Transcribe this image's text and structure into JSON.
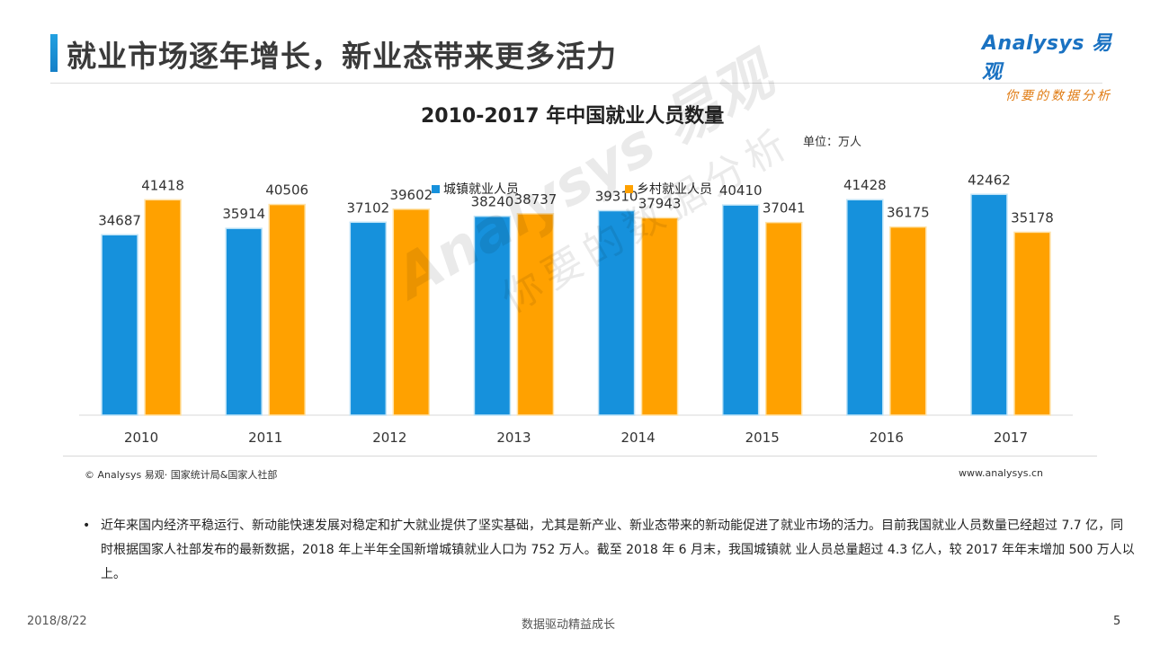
{
  "header": {
    "title": "就业市场逐年增长，新业态带来更多活力",
    "logo_main": "Analysys 易观",
    "logo_sub": "你要的数据分析"
  },
  "watermark": {
    "main": "Analysys 易观",
    "sub": "你要的数据分析"
  },
  "chart_data": {
    "type": "bar",
    "title": "2010-2017 年中国就业人员数量",
    "unit": "单位：万人",
    "categories": [
      "2010",
      "2011",
      "2012",
      "2013",
      "2014",
      "2015",
      "2016",
      "2017"
    ],
    "series": [
      {
        "name": "城镇就业人员",
        "color": "#1691dc",
        "values": [
          34687,
          35914,
          37102,
          38240,
          39310,
          40410,
          41428,
          42462
        ]
      },
      {
        "name": "乡村就业人员",
        "color": "#ffa100",
        "values": [
          41418,
          40506,
          39602,
          38737,
          37943,
          37041,
          36175,
          35178
        ]
      }
    ],
    "ylim": [
      0,
      47000
    ],
    "legend": "top-center",
    "grid": false
  },
  "source": "© Analysys 易观· 国家统计局&国家人社部",
  "website": "www.analysys.cn",
  "bullet_text": "近年来国内经济平稳运行、新动能快速发展对稳定和扩大就业提供了坚实基础，尤其是新产业、新业态带来的新动能促进了就业市场的活力。目前我国就业人员数量已经超过 7.7 亿，同时根据国家人社部发布的最新数据，2018 年上半年全国新增城镇就业人口为 752 万人。截至 2018 年 6 月末，我国城镇就 业人员总量超过 4.3 亿人，较 2017 年年末增加 500 万人以上。",
  "footer": {
    "date": "2018/8/22",
    "center": "数据驱动精益成长",
    "page": "5"
  }
}
